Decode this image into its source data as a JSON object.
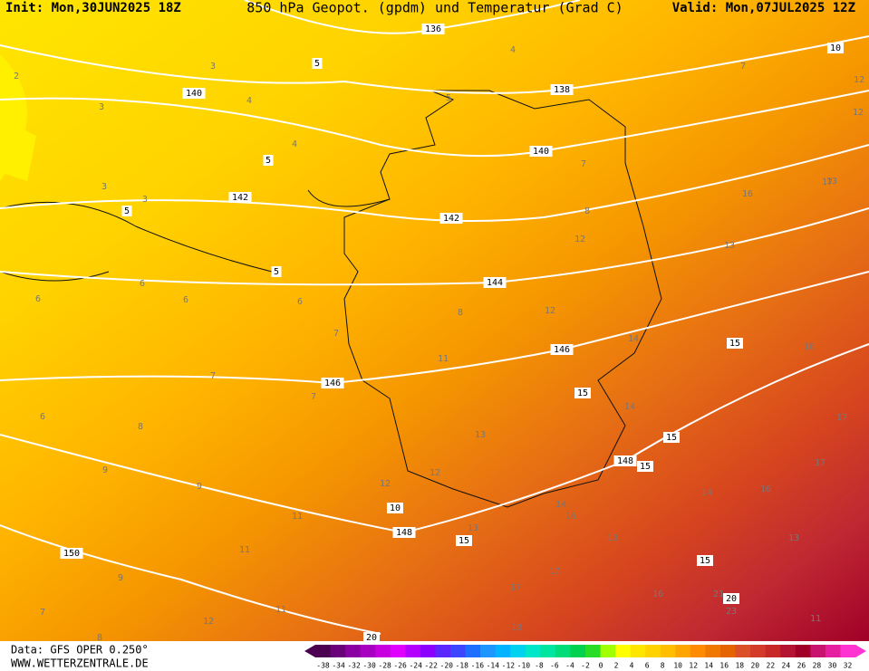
{
  "header": {
    "init": "Init: Mon,30JUN2025 18Z",
    "title": "850 hPa Geopot. (gpdm) und Temperatur (Grad C)",
    "valid": "Valid: Mon,07JUL2025 12Z"
  },
  "footer": {
    "data": "Data: GFS OPER 0.250°",
    "site": "WWW.WETTERZENTRALE.DE"
  },
  "map": {
    "geopotential_labels": [
      136,
      138,
      140,
      140,
      142,
      142,
      144,
      146,
      146,
      148,
      148,
      150
    ],
    "isotherm_labels": [
      5,
      5,
      5,
      5,
      10,
      10,
      15,
      15,
      15,
      15,
      15,
      15,
      20,
      20
    ],
    "temperature_labels": [
      2,
      3,
      3,
      3,
      4,
      4,
      3,
      4,
      5,
      6,
      6,
      6,
      6,
      7,
      7,
      7,
      7,
      7,
      8,
      8,
      9,
      8,
      9,
      11,
      11,
      12,
      11,
      12,
      12,
      13,
      13,
      11,
      12,
      13,
      14,
      14,
      14,
      13,
      14,
      16,
      16,
      17,
      16,
      17,
      17,
      16,
      17,
      13,
      12,
      6,
      7,
      9,
      8,
      12,
      17,
      18,
      16,
      21,
      23,
      11,
      12,
      13
    ]
  },
  "colorbar": {
    "ticks": [
      -38,
      -34,
      -32,
      -30,
      -28,
      -26,
      -24,
      -22,
      -20,
      -18,
      -16,
      -14,
      -12,
      -10,
      -8,
      -6,
      -4,
      -2,
      0,
      2,
      4,
      6,
      8,
      10,
      12,
      14,
      16,
      18,
      20,
      22,
      24,
      26,
      28,
      30,
      32
    ],
    "colors": [
      "#4b0050",
      "#6a007a",
      "#8a00a0",
      "#a800c0",
      "#c800e0",
      "#e000ff",
      "#b400ff",
      "#8c00ff",
      "#5a28ff",
      "#3c46ff",
      "#1e6eff",
      "#1e96ff",
      "#00b4ff",
      "#00d2f0",
      "#00e6c8",
      "#00e6a0",
      "#00dc78",
      "#00d250",
      "#28dc28",
      "#a0ff00",
      "#ffff00",
      "#ffe600",
      "#ffd200",
      "#ffbe00",
      "#ffa500",
      "#ff8c00",
      "#f07800",
      "#e66400",
      "#dc5028",
      "#d23c28",
      "#c82828",
      "#b41432",
      "#a00028",
      "#c8146e",
      "#e61ea0",
      "#ff32d2"
    ]
  }
}
